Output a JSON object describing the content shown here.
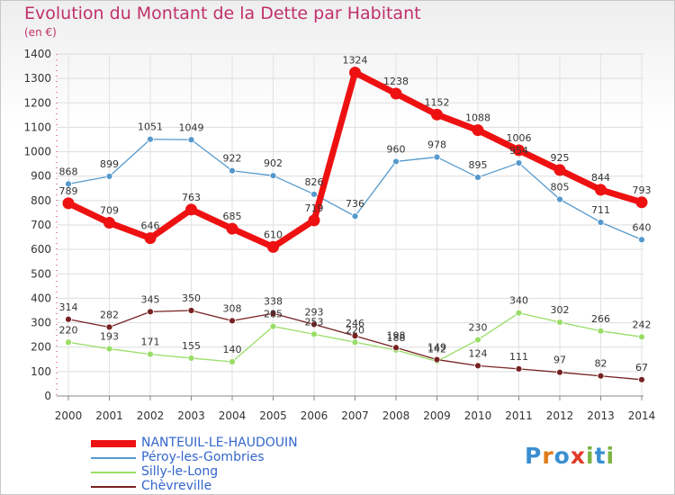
{
  "title": "Evolution du Montant de la Dette par Habitant",
  "subtitle": "(en €)",
  "logo_text": "Proxiti",
  "chart_data": {
    "type": "line",
    "title": "Evolution du Montant de la Dette par Habitant",
    "ylabel": "(en €)",
    "ylim": [
      0,
      1400
    ],
    "yticks": [
      0,
      100,
      200,
      300,
      400,
      500,
      600,
      700,
      800,
      900,
      1000,
      1100,
      1200,
      1300,
      1400
    ],
    "x": [
      "2000",
      "2001",
      "2002",
      "2003",
      "2004",
      "2005",
      "2006",
      "2007",
      "2008",
      "2009",
      "2010",
      "2011",
      "2012",
      "2013",
      "2014"
    ],
    "grid": true,
    "legend": "bottom-left",
    "series": [
      {
        "name": "NANTEUIL-LE-HAUDOUIN",
        "color": "#ee1111",
        "values": [
          789,
          709,
          646,
          763,
          685,
          610,
          719,
          1324,
          1238,
          1152,
          1088,
          1006,
          925,
          844,
          793
        ]
      },
      {
        "name": "Péroy-les-Gombries",
        "color": "#5599cc",
        "values": [
          868,
          899,
          1051,
          1049,
          922,
          902,
          826,
          736,
          960,
          978,
          895,
          954,
          805,
          711,
          640
        ]
      },
      {
        "name": "Silly-le-Long",
        "color": "#99dd66",
        "values": [
          220,
          193,
          171,
          155,
          140,
          285,
          253,
          220,
          188,
          142,
          230,
          340,
          302,
          266,
          242
        ]
      },
      {
        "name": "Chèvreville",
        "color": "#772222",
        "values": [
          314,
          282,
          345,
          350,
          308,
          338,
          293,
          246,
          198,
          149,
          124,
          111,
          97,
          82,
          67
        ]
      }
    ]
  }
}
